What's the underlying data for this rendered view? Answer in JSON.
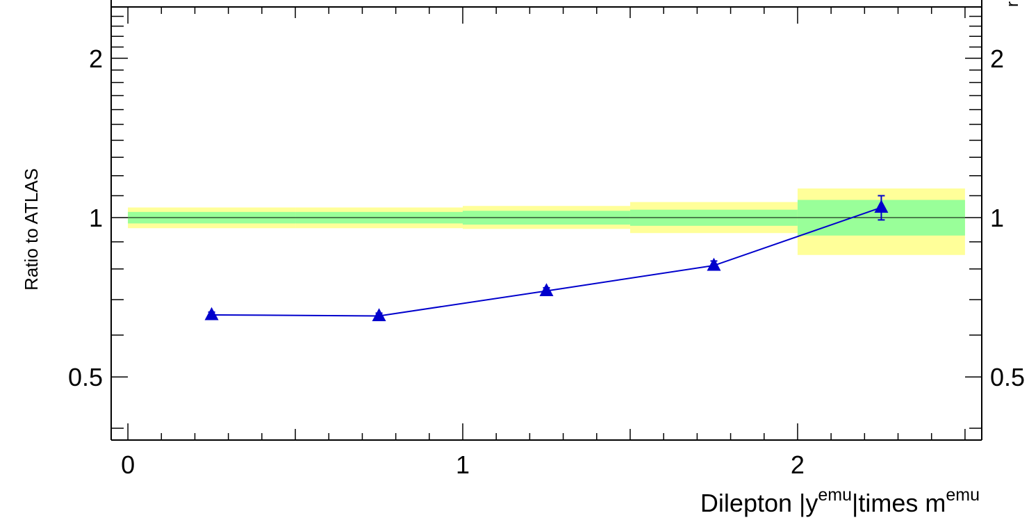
{
  "chart_data": {
    "type": "scatter",
    "ylabel": "Ratio to ATLAS",
    "xlabel": {
      "prefix": "Dilepton |y",
      "sup1": "emu",
      "mid": "|times m",
      "sup2": "emu"
    },
    "corner_fragment": "r",
    "x_range": [
      -0.05,
      2.55
    ],
    "y_range": [
      0.38,
      2.5
    ],
    "y_scale": "log",
    "x_major_ticks": [
      0,
      1,
      2
    ],
    "x_tick_labels": [
      "0",
      "1",
      "2"
    ],
    "y_major_ticks": [
      0.5,
      1,
      2
    ],
    "y_tick_labels": [
      "0.5",
      "1",
      "2"
    ],
    "reference_line": 1,
    "bins": [
      {
        "x": [
          0.0,
          0.5
        ],
        "band_inner": [
          0.975,
          1.025
        ],
        "band_outer": [
          0.955,
          1.045
        ]
      },
      {
        "x": [
          0.5,
          1.0
        ],
        "band_inner": [
          0.975,
          1.025
        ],
        "band_outer": [
          0.955,
          1.045
        ]
      },
      {
        "x": [
          1.0,
          1.5
        ],
        "band_inner": [
          0.97,
          1.03
        ],
        "band_outer": [
          0.952,
          1.052
        ]
      },
      {
        "x": [
          1.5,
          2.0
        ],
        "band_inner": [
          0.965,
          1.035
        ],
        "band_outer": [
          0.935,
          1.07
        ]
      },
      {
        "x": [
          2.0,
          2.5
        ],
        "band_inner": [
          0.925,
          1.08
        ],
        "band_outer": [
          0.85,
          1.135
        ]
      }
    ],
    "series": [
      {
        "points": [
          {
            "x": 0.25,
            "y": 0.655,
            "err": 0.008
          },
          {
            "x": 0.75,
            "y": 0.652,
            "err": 0.008
          },
          {
            "x": 1.25,
            "y": 0.727,
            "err": 0.01
          },
          {
            "x": 1.75,
            "y": 0.812,
            "err": 0.016
          },
          {
            "x": 2.25,
            "y": 1.045,
            "err": 0.055
          }
        ]
      }
    ],
    "colors": {
      "band_outer": "#ffff99",
      "band_inner": "#99ff99",
      "series": "#0000cc",
      "axis": "#000000"
    }
  }
}
